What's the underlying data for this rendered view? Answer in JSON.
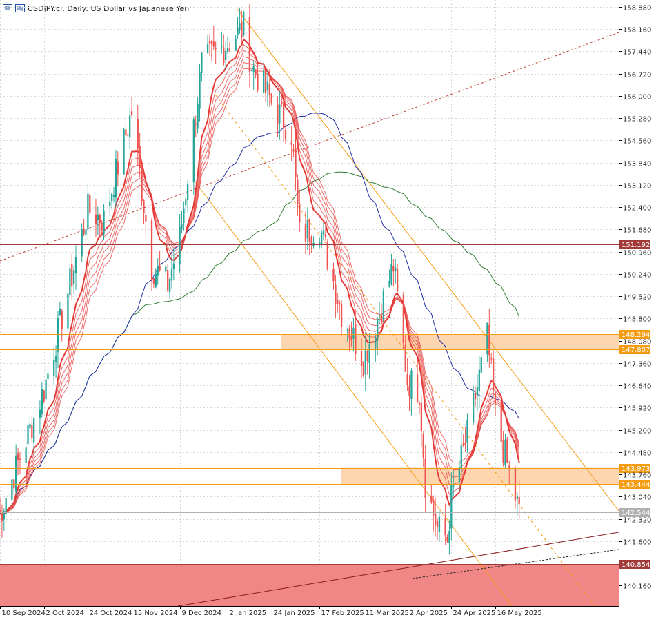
{
  "header": {
    "symbol_label": "USDJPY.cl, Daily:  US Dollar vs Japanese Yen",
    "menu_icon": "list-icon",
    "chart_icon": "chart-window-icon"
  },
  "chart_data": {
    "type": "candlestick",
    "title": "USDJPY.cl, Daily:  US Dollar vs Japanese Yen",
    "ylim": [
      139.5,
      159.1
    ],
    "y_ticks": [
      "158.880",
      "158.160",
      "157.440",
      "156.720",
      "156.000",
      "155.280",
      "154.560",
      "153.840",
      "153.120",
      "152.400",
      "151.680",
      "150.960",
      "150.240",
      "149.520",
      "148.800",
      "148.080",
      "147.360",
      "146.640",
      "145.920",
      "145.200",
      "144.480",
      "143.760",
      "143.040",
      "142.320",
      "141.600",
      "140.160"
    ],
    "x_ticks": [
      "10 Sep 2024",
      "2 Oct 2024",
      "24 Oct 2024",
      "15 Nov 2024",
      "9 Dec 2024",
      "2 Jan 2025",
      "24 Jan 2025",
      "17 Feb 2025",
      "11 Mar 2025",
      "2 Apr 2025",
      "24 Apr 2025",
      "16 May 2025"
    ],
    "price_labels": [
      {
        "value": 151.192,
        "text": "151.192",
        "color": "#a23a3a"
      },
      {
        "value": 148.294,
        "text": "148.294",
        "color": "#f39c12"
      },
      {
        "value": 147.807,
        "text": "147.807",
        "color": "#f39c12"
      },
      {
        "value": 143.973,
        "text": "143.973",
        "color": "#f39c12"
      },
      {
        "value": 143.444,
        "text": "143.444",
        "color": "#f39c12"
      },
      {
        "value": 142.544,
        "text": "142.544",
        "color": "#b0b0b0"
      },
      {
        "value": 140.854,
        "text": "140.854",
        "color": "#a23a3a"
      }
    ],
    "zones": [
      {
        "name": "resistance-zone",
        "from": 147.807,
        "to": 148.294,
        "color": "#fdd5ae"
      },
      {
        "name": "support-zone",
        "from": 143.444,
        "to": 143.973,
        "color": "#fdd5ae"
      },
      {
        "name": "demand-zone",
        "from": 139.5,
        "to": 140.854,
        "color": "#f08080"
      }
    ],
    "series_anchors": {
      "close": [
        [
          "10 Sep 2024",
          142.5
        ],
        [
          "2 Oct 2024",
          146.5
        ],
        [
          "24 Oct 2024",
          152.3
        ],
        [
          "1 Nov 2024",
          152.0
        ],
        [
          "15 Nov 2024",
          155.5
        ],
        [
          "25 Nov 2024",
          150.5
        ],
        [
          "3 Dec 2024",
          149.9
        ],
        [
          "9 Dec 2024",
          151.4
        ],
        [
          "20 Dec 2024",
          157.0
        ],
        [
          "2 Jan 2025",
          157.7
        ],
        [
          "10 Jan 2025",
          158.2
        ],
        [
          "14 Jan 2025",
          157.0
        ],
        [
          "24 Jan 2025",
          155.8
        ],
        [
          "3 Feb 2025",
          154.8
        ],
        [
          "7 Feb 2025",
          151.5
        ],
        [
          "17 Feb 2025",
          151.8
        ],
        [
          "28 Feb 2025",
          149.0
        ],
        [
          "11 Mar 2025",
          147.5
        ],
        [
          "19 Mar 2025",
          149.0
        ],
        [
          "26 Mar 2025",
          150.5
        ],
        [
          "2 Apr 2025",
          146.8
        ],
        [
          "8 Apr 2025",
          146.5
        ],
        [
          "11 Apr 2025",
          143.5
        ],
        [
          "17 Apr 2025",
          142.0
        ],
        [
          "22 Apr 2025",
          141.7
        ],
        [
          "24 Apr 2025",
          143.0
        ],
        [
          "2 May 2025",
          145.0
        ],
        [
          "12 May 2025",
          148.2
        ],
        [
          "16 May 2025",
          145.7
        ],
        [
          "23 May 2025",
          143.8
        ],
        [
          "28 May 2025",
          142.5
        ]
      ]
    },
    "moving_averages": [
      {
        "name": "blue-ma",
        "color": "#1f2ea8"
      },
      {
        "name": "green-ma",
        "color": "#2e7d32"
      },
      {
        "name": "red-ribbon",
        "color": "#e53935"
      }
    ],
    "colors": {
      "bull": "#26a69a",
      "bear": "#ef5350",
      "grid": "#d7d7d7",
      "axis_text": "#222222"
    }
  }
}
